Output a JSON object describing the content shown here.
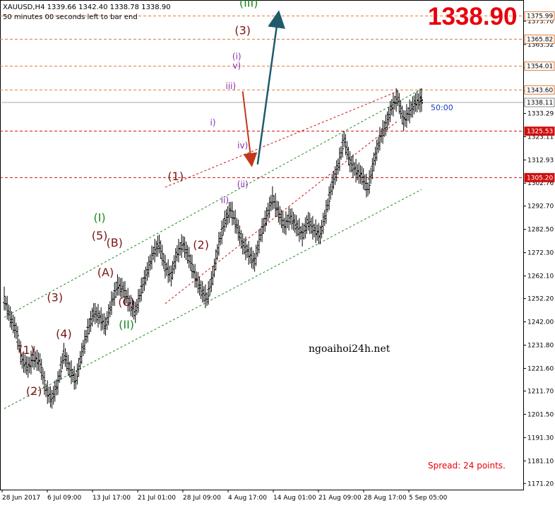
{
  "header": {
    "symbol_line": "XAUUSD,H4   1339.66  1342.40  1338.78  1338.90",
    "timer_line": "50 minutes 00 seconds left to bar end"
  },
  "big_price": "1338.90",
  "timer_label": "50:00",
  "watermark": "ngoaihoi24h.net",
  "spread": "Spread: 24 points.",
  "colors": {
    "up_arrow": "#1e5b6b",
    "down_arrow": "#c0391b",
    "channel_green": "#1f8a1f",
    "channel_red": "#d01010",
    "level_red": "#d01010",
    "level_orange": "#e07a3a",
    "wave_major": "#7a1414",
    "wave_green": "#1a8c1a",
    "wave_minor": "#8a2ab4"
  },
  "chart_data": {
    "type": "candlestick",
    "symbol": "XAUUSD",
    "timeframe": "H4",
    "ohlc_last": {
      "open": 1339.66,
      "high": 1342.4,
      "low": 1338.78,
      "close": 1338.9
    },
    "ylim": [
      1168.5,
      1383.0
    ],
    "y_ticks": [
      1373.7,
      1363.52,
      1353.34,
      1343.16,
      1333.29,
      1323.11,
      1312.93,
      1302.76,
      1292.7,
      1282.5,
      1272.3,
      1262.1,
      1252.2,
      1242.0,
      1231.8,
      1221.6,
      1211.7,
      1201.5,
      1191.3,
      1181.1,
      1171.2
    ],
    "x_ticks": [
      "28 Jun 2017",
      "6 Jul 09:00",
      "13 Jul 17:00",
      "21 Jul 01:00",
      "28 Jul 09:00",
      "4 Aug 17:00",
      "14 Aug 01:00",
      "21 Aug 09:00",
      "28 Aug 17:00",
      "5 Sep 05:00"
    ],
    "price_levels": [
      {
        "value": 1375.99,
        "label": "1375.99",
        "style": "orange"
      },
      {
        "value": 1365.82,
        "label": "1365.82",
        "style": "orange"
      },
      {
        "value": 1354.01,
        "label": "1354.01",
        "style": "orange"
      },
      {
        "value": 1343.6,
        "label": "1343.60",
        "style": "orange"
      },
      {
        "value": 1338.11,
        "label": "1338.11",
        "style": "gray"
      },
      {
        "value": 1325.53,
        "label": "1325.53",
        "style": "red"
      },
      {
        "value": 1305.2,
        "label": "1305.20",
        "style": "red"
      }
    ],
    "price_path": [
      [
        0,
        1252
      ],
      [
        4,
        1244
      ],
      [
        8,
        1238
      ],
      [
        12,
        1225
      ],
      [
        16,
        1222
      ],
      [
        20,
        1226
      ],
      [
        24,
        1224
      ],
      [
        28,
        1212
      ],
      [
        32,
        1208
      ],
      [
        36,
        1215
      ],
      [
        40,
        1228
      ],
      [
        44,
        1221
      ],
      [
        48,
        1216
      ],
      [
        52,
        1228
      ],
      [
        56,
        1238
      ],
      [
        60,
        1246
      ],
      [
        64,
        1244
      ],
      [
        68,
        1240
      ],
      [
        72,
        1250
      ],
      [
        76,
        1258
      ],
      [
        80,
        1256
      ],
      [
        84,
        1250
      ],
      [
        88,
        1246
      ],
      [
        92,
        1256
      ],
      [
        96,
        1264
      ],
      [
        100,
        1272
      ],
      [
        104,
        1276
      ],
      [
        108,
        1266
      ],
      [
        112,
        1262
      ],
      [
        116,
        1272
      ],
      [
        120,
        1276
      ],
      [
        124,
        1270
      ],
      [
        128,
        1262
      ],
      [
        132,
        1256
      ],
      [
        136,
        1252
      ],
      [
        140,
        1262
      ],
      [
        144,
        1276
      ],
      [
        148,
        1286
      ],
      [
        152,
        1291
      ],
      [
        156,
        1284
      ],
      [
        160,
        1276
      ],
      [
        164,
        1272
      ],
      [
        168,
        1268
      ],
      [
        172,
        1280
      ],
      [
        176,
        1288
      ],
      [
        180,
        1296
      ],
      [
        184,
        1290
      ],
      [
        188,
        1284
      ],
      [
        192,
        1288
      ],
      [
        196,
        1284
      ],
      [
        200,
        1280
      ],
      [
        204,
        1286
      ],
      [
        208,
        1282
      ],
      [
        212,
        1280
      ],
      [
        216,
        1290
      ],
      [
        220,
        1302
      ],
      [
        224,
        1310
      ],
      [
        228,
        1322
      ],
      [
        232,
        1312
      ],
      [
        236,
        1308
      ],
      [
        240,
        1306
      ],
      [
        244,
        1300
      ],
      [
        248,
        1312
      ],
      [
        252,
        1322
      ],
      [
        256,
        1328
      ],
      [
        260,
        1336
      ],
      [
        264,
        1340
      ],
      [
        268,
        1330
      ],
      [
        272,
        1334
      ],
      [
        276,
        1338
      ],
      [
        280,
        1339
      ]
    ],
    "channels": [
      {
        "style": "green",
        "points": [
          [
            0,
            1244
          ],
          [
            280,
            1344
          ]
        ]
      },
      {
        "style": "green",
        "points": [
          [
            0,
            1204
          ],
          [
            280,
            1300
          ]
        ]
      },
      {
        "style": "red",
        "points": [
          [
            108,
            1301
          ],
          [
            264,
            1343
          ]
        ]
      },
      {
        "style": "red",
        "points": [
          [
            108,
            1250
          ],
          [
            264,
            1330
          ]
        ]
      }
    ],
    "waves": [
      {
        "label": "(1)",
        "at": [
          15,
          1228
        ],
        "style": "major"
      },
      {
        "label": "(2)",
        "at": [
          20,
          1210
        ],
        "style": "major"
      },
      {
        "label": "(3)",
        "at": [
          34,
          1251
        ],
        "style": "major"
      },
      {
        "label": "(4)",
        "at": [
          40,
          1235
        ],
        "style": "major"
      },
      {
        "label": "(5)",
        "at": [
          64,
          1278
        ],
        "style": "major"
      },
      {
        "label": "(I)",
        "at": [
          64,
          1286
        ],
        "style": "green"
      },
      {
        "label": "(A)",
        "at": [
          68,
          1262
        ],
        "style": "major"
      },
      {
        "label": "(B)",
        "at": [
          74,
          1275
        ],
        "style": "major"
      },
      {
        "label": "(C)",
        "at": [
          82,
          1249
        ],
        "style": "major"
      },
      {
        "label": "(II)",
        "at": [
          82,
          1239
        ],
        "style": "green"
      },
      {
        "label": "(1)",
        "at": [
          115,
          1304
        ],
        "style": "major"
      },
      {
        "label": "(2)",
        "at": [
          132,
          1274
        ],
        "style": "major"
      },
      {
        "label": "i)",
        "at": [
          140,
          1328
        ],
        "style": "minor"
      },
      {
        "label": "ii)",
        "at": [
          148,
          1294
        ],
        "style": "minor"
      },
      {
        "label": "iii)",
        "at": [
          152,
          1344
        ],
        "style": "minor"
      },
      {
        "label": "iv)",
        "at": [
          160,
          1318
        ],
        "style": "minor"
      },
      {
        "label": "v)",
        "at": [
          156,
          1353
        ],
        "style": "minor"
      },
      {
        "label": "(i)",
        "at": [
          156,
          1357
        ],
        "style": "minor"
      },
      {
        "label": "(3)",
        "at": [
          160,
          1368
        ],
        "style": "major"
      },
      {
        "label": "(III)",
        "at": [
          164,
          1380
        ],
        "style": "green"
      },
      {
        "label": "(ii)",
        "at": [
          160,
          1301
        ],
        "style": "minor"
      }
    ],
    "arrows": [
      {
        "style": "up",
        "from": [
          170,
          1311
        ],
        "to": [
          184,
          1377
        ]
      },
      {
        "style": "down",
        "from": [
          160,
          1343
        ],
        "to": [
          166,
          1311
        ]
      }
    ]
  }
}
